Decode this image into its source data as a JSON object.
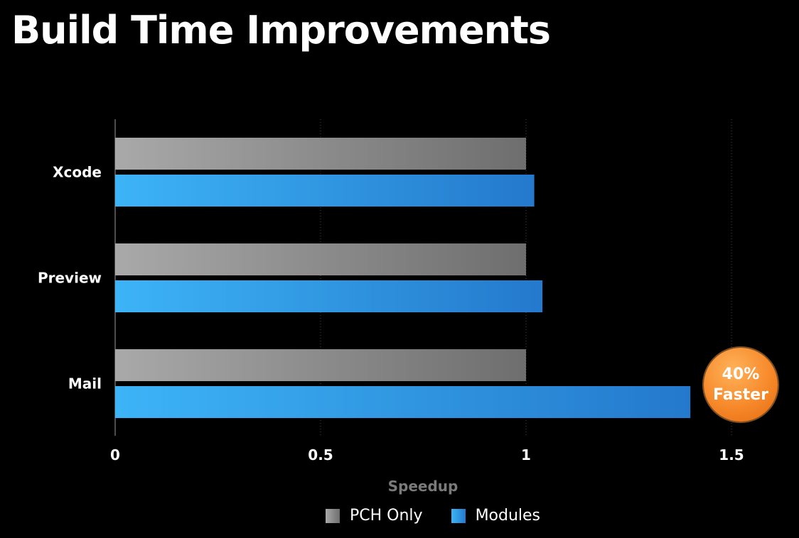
{
  "title": "Build Time Improvements",
  "chart_data": {
    "type": "bar",
    "orientation": "horizontal",
    "categories": [
      "Xcode",
      "Preview",
      "Mail"
    ],
    "series": [
      {
        "name": "PCH Only",
        "values": [
          1.0,
          1.0,
          1.0
        ]
      },
      {
        "name": "Modules",
        "values": [
          1.02,
          1.04,
          1.4
        ]
      }
    ],
    "xlabel": "Speedup",
    "ylabel": "",
    "xlim": [
      0,
      1.5
    ],
    "xticks": [
      "0",
      "0.5",
      "1",
      "1.5"
    ],
    "grid": "vertical dotted",
    "legend": "bottom-center",
    "annotation": {
      "line1": "40%",
      "line2": "Faster",
      "target": "Mail"
    }
  },
  "colors": {
    "background": "#000000",
    "pch_dark": "#6e6e6e",
    "pch_light": "#a9a9a9",
    "modules_light": "#3db4f7",
    "modules_dark": "#2479cc",
    "badge": "#f7892a"
  },
  "legend": {
    "pch_label": "PCH Only",
    "modules_label": "Modules"
  }
}
